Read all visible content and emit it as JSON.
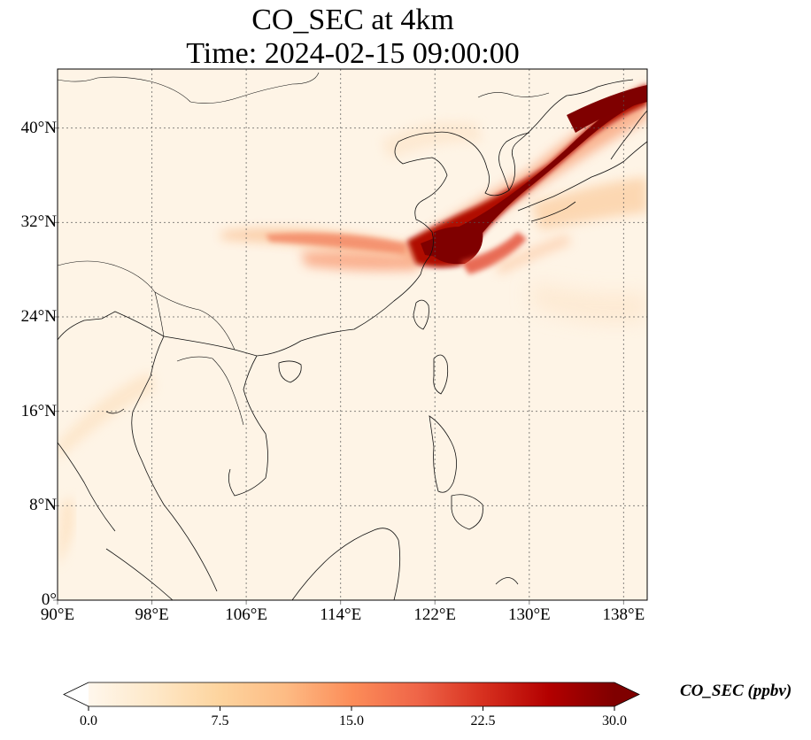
{
  "title": {
    "line1": "CO_SEC at 4km",
    "line2": "Time: 2024-02-15 09:00:00"
  },
  "map": {
    "extent": {
      "lon_min": 90,
      "lon_max": 140,
      "lat_min": 0,
      "lat_max": 45
    },
    "grid": "dotted",
    "lat_ticks": [
      "0°",
      "8°N",
      "16°N",
      "24°N",
      "32°N",
      "40°N"
    ],
    "lon_ticks": [
      "90°E",
      "98°E",
      "106°E",
      "114°E",
      "122°E",
      "130°E",
      "138°E"
    ],
    "lat_tick_values": [
      0,
      8,
      16,
      24,
      32,
      40
    ],
    "lon_tick_values": [
      90,
      98,
      106,
      114,
      122,
      130,
      138
    ],
    "colormap": "OrRd",
    "colors": [
      "#fff7ec",
      "#fee8c8",
      "#fdd49e",
      "#fdbb84",
      "#fc8d59",
      "#ef6548",
      "#d7301f",
      "#b30000",
      "#7f0000"
    ],
    "extend": "both"
  },
  "colorbar": {
    "label": "CO_SEC (ppbv)",
    "min": 0,
    "max": 30,
    "ticks": [
      "0.0",
      "7.5",
      "15.0",
      "22.5",
      "30.0"
    ],
    "tick_values": [
      0,
      7.5,
      15,
      22.5,
      30
    ]
  }
}
